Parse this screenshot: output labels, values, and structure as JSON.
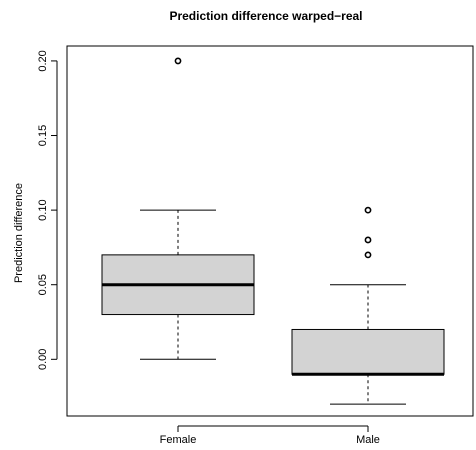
{
  "chart_data": {
    "type": "box",
    "title": "Prediction difference warped−real",
    "xlabel": "",
    "ylabel": "Prediction difference",
    "ylim": [
      -0.038,
      0.21
    ],
    "yticks": [
      0.0,
      0.05,
      0.1,
      0.15,
      0.2
    ],
    "ytick_labels": [
      "0.00",
      "0.05",
      "0.10",
      "0.15",
      "0.20"
    ],
    "categories": [
      "Female",
      "Male"
    ],
    "boxes": [
      {
        "category": "Female",
        "lower_whisker": 0.0,
        "q1": 0.03,
        "median": 0.05,
        "q3": 0.07,
        "upper_whisker": 0.1,
        "outliers": [
          0.2
        ]
      },
      {
        "category": "Male",
        "lower_whisker": -0.03,
        "q1": -0.01,
        "median": -0.01,
        "q3": 0.02,
        "upper_whisker": 0.05,
        "outliers": [
          0.07,
          0.08,
          0.1
        ]
      }
    ],
    "box_fill": "#d3d3d3",
    "grid": false,
    "legend": "none"
  }
}
